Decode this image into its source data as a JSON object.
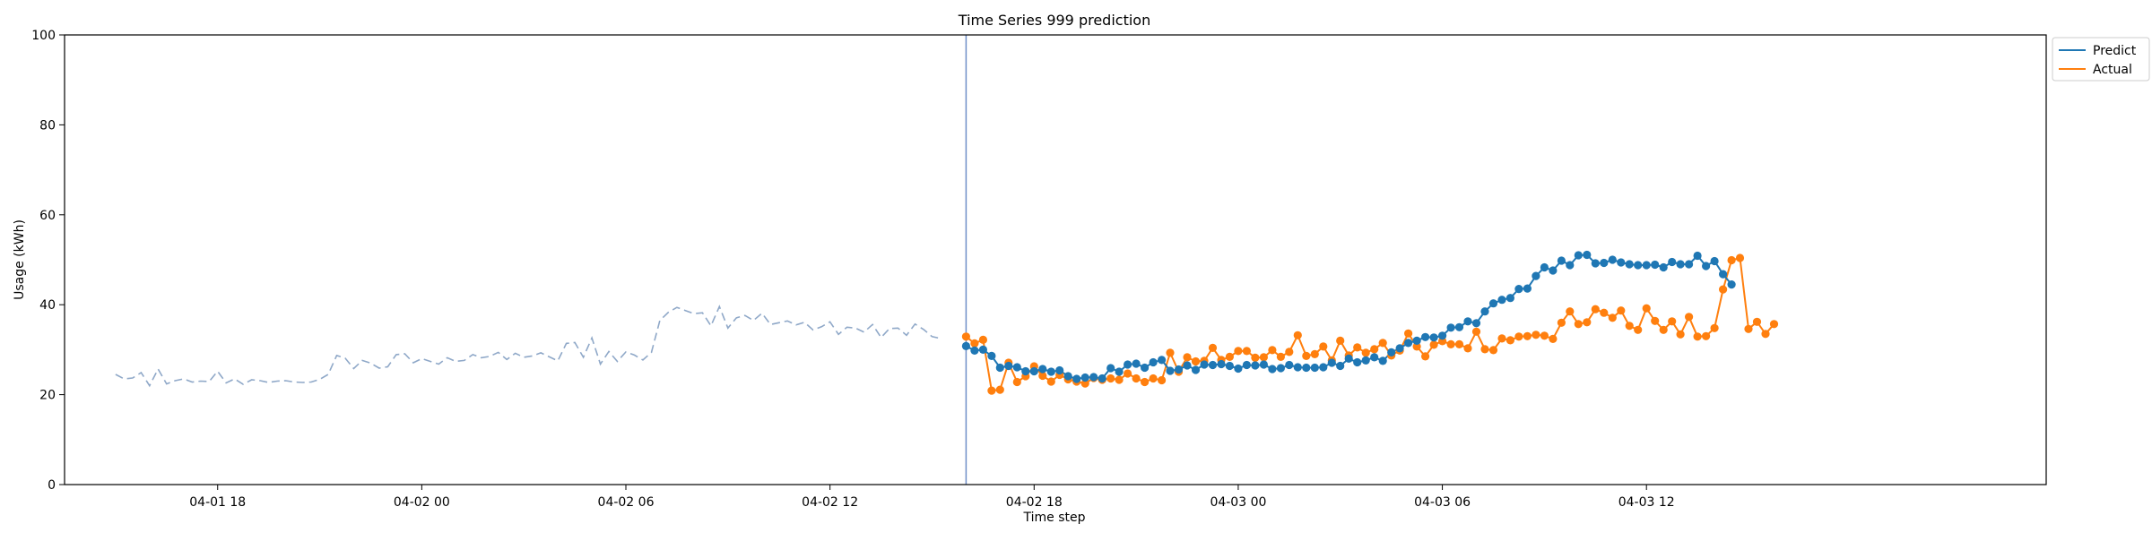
{
  "chart_data": {
    "type": "line",
    "title": "Time Series 999 prediction",
    "xlabel": "Time step",
    "ylabel": "Usage (kWh)",
    "ylim": [
      0,
      100
    ],
    "yticks": [
      0,
      20,
      40,
      60,
      80,
      100
    ],
    "x_start": "04-01 15:00",
    "x_step_minutes": 15,
    "xlim": [
      "04-01 13:30",
      "04-03 23:45"
    ],
    "xticks": [
      "04-01 18",
      "04-02 00",
      "04-02 06",
      "04-02 12",
      "04-02 18",
      "04-03 00",
      "04-03 06",
      "04-03 12"
    ],
    "legend_position": "upper-right",
    "forecast_start": "04-02 16:00",
    "colors": {
      "history": "#8fa8c8",
      "predict": "#1f77b4",
      "actual": "#ff7f0e",
      "divider": "#6f8fc8"
    },
    "history": {
      "x_start": "04-01 15:00",
      "values": [
        24.5,
        23.5,
        23.7,
        24.9,
        22.0,
        25.7,
        22.4,
        23.1,
        23.5,
        22.8,
        23.0,
        22.9,
        25.2,
        22.6,
        23.5,
        22.3,
        23.3,
        23.1,
        22.7,
        23.0,
        23.1,
        22.8,
        22.7,
        22.8,
        23.4,
        24.5,
        28.7,
        28.1,
        25.8,
        27.6,
        27.0,
        25.9,
        26.2,
        28.9,
        29.1,
        27.1,
        28.0,
        27.4,
        26.8,
        28.2,
        27.4,
        27.6,
        28.9,
        28.2,
        28.5,
        29.4,
        27.8,
        29.2,
        28.3,
        28.6,
        29.3,
        28.4,
        27.5,
        31.4,
        31.6,
        28.3,
        32.6,
        26.8,
        29.6,
        27.4,
        29.5,
        28.8,
        27.7,
        29.4,
        36.5,
        38.3,
        39.4,
        38.7,
        38.0,
        38.2,
        35.3,
        39.6,
        34.8,
        37.1,
        37.6,
        36.5,
        38.1,
        35.6,
        36.0,
        36.4,
        35.5,
        36.1,
        34.4,
        35.1,
        36.2,
        33.4,
        35.0,
        34.8,
        33.9,
        35.6,
        32.7,
        34.7,
        34.8,
        33.2,
        35.7,
        34.5,
        32.9,
        32.5
      ]
    },
    "forecast_x_start": "04-02 16:00",
    "series": [
      {
        "name": "Predict",
        "values": [
          30.8,
          29.8,
          30.0,
          28.6,
          26.0,
          26.4,
          26.1,
          25.2,
          25.2,
          25.7,
          25.1,
          25.4,
          24.1,
          23.5,
          23.8,
          23.9,
          23.6,
          25.9,
          25.1,
          26.7,
          26.9,
          26.0,
          27.2,
          27.7,
          25.3,
          25.6,
          26.5,
          25.5,
          26.7,
          26.6,
          26.8,
          26.4,
          25.8,
          26.6,
          26.5,
          26.7,
          25.7,
          25.9,
          26.6,
          26.1,
          26.0,
          26.0,
          26.1,
          27.1,
          26.4,
          28.0,
          27.2,
          27.6,
          28.3,
          27.5,
          29.4,
          30.3,
          31.5,
          32.0,
          32.8,
          32.7,
          33.1,
          34.9,
          35.0,
          36.3,
          35.9,
          38.5,
          40.3,
          41.1,
          41.5,
          43.5,
          43.6,
          46.4,
          48.3,
          47.6,
          49.8,
          48.8,
          51.0,
          51.1,
          49.2,
          49.3,
          50.0,
          49.4,
          49.0,
          48.8,
          48.8,
          48.9,
          48.3,
          49.5,
          49.0,
          49.0,
          50.9,
          48.6,
          49.7,
          46.8,
          44.5
        ]
      },
      {
        "name": "Actual",
        "values": [
          32.9,
          31.4,
          32.2,
          20.9,
          21.1,
          27.1,
          22.8,
          24.1,
          26.3,
          24.2,
          22.9,
          24.4,
          23.4,
          22.9,
          22.5,
          23.7,
          23.3,
          23.6,
          23.3,
          24.7,
          23.6,
          22.8,
          23.6,
          23.2,
          29.3,
          25.1,
          28.3,
          27.4,
          27.5,
          30.4,
          27.7,
          28.4,
          29.7,
          29.7,
          28.2,
          28.3,
          29.9,
          28.4,
          29.5,
          33.2,
          28.6,
          29.0,
          30.7,
          27.6,
          32.0,
          28.7,
          30.5,
          29.3,
          30.1,
          31.5,
          28.7,
          29.8,
          33.6,
          30.7,
          28.5,
          31.1,
          31.9,
          31.2,
          31.2,
          30.3,
          34.0,
          30.1,
          29.9,
          32.5,
          32.1,
          32.9,
          33.0,
          33.3,
          33.1,
          32.4,
          36.0,
          38.5,
          35.7,
          36.1,
          39.0,
          38.2,
          37.1,
          38.7,
          35.3,
          34.4,
          39.2,
          36.4,
          34.4,
          36.3,
          33.4,
          37.3,
          32.9,
          33.0,
          34.8,
          43.4,
          49.9,
          50.4,
          34.6,
          36.2,
          33.5,
          35.7
        ]
      }
    ]
  }
}
